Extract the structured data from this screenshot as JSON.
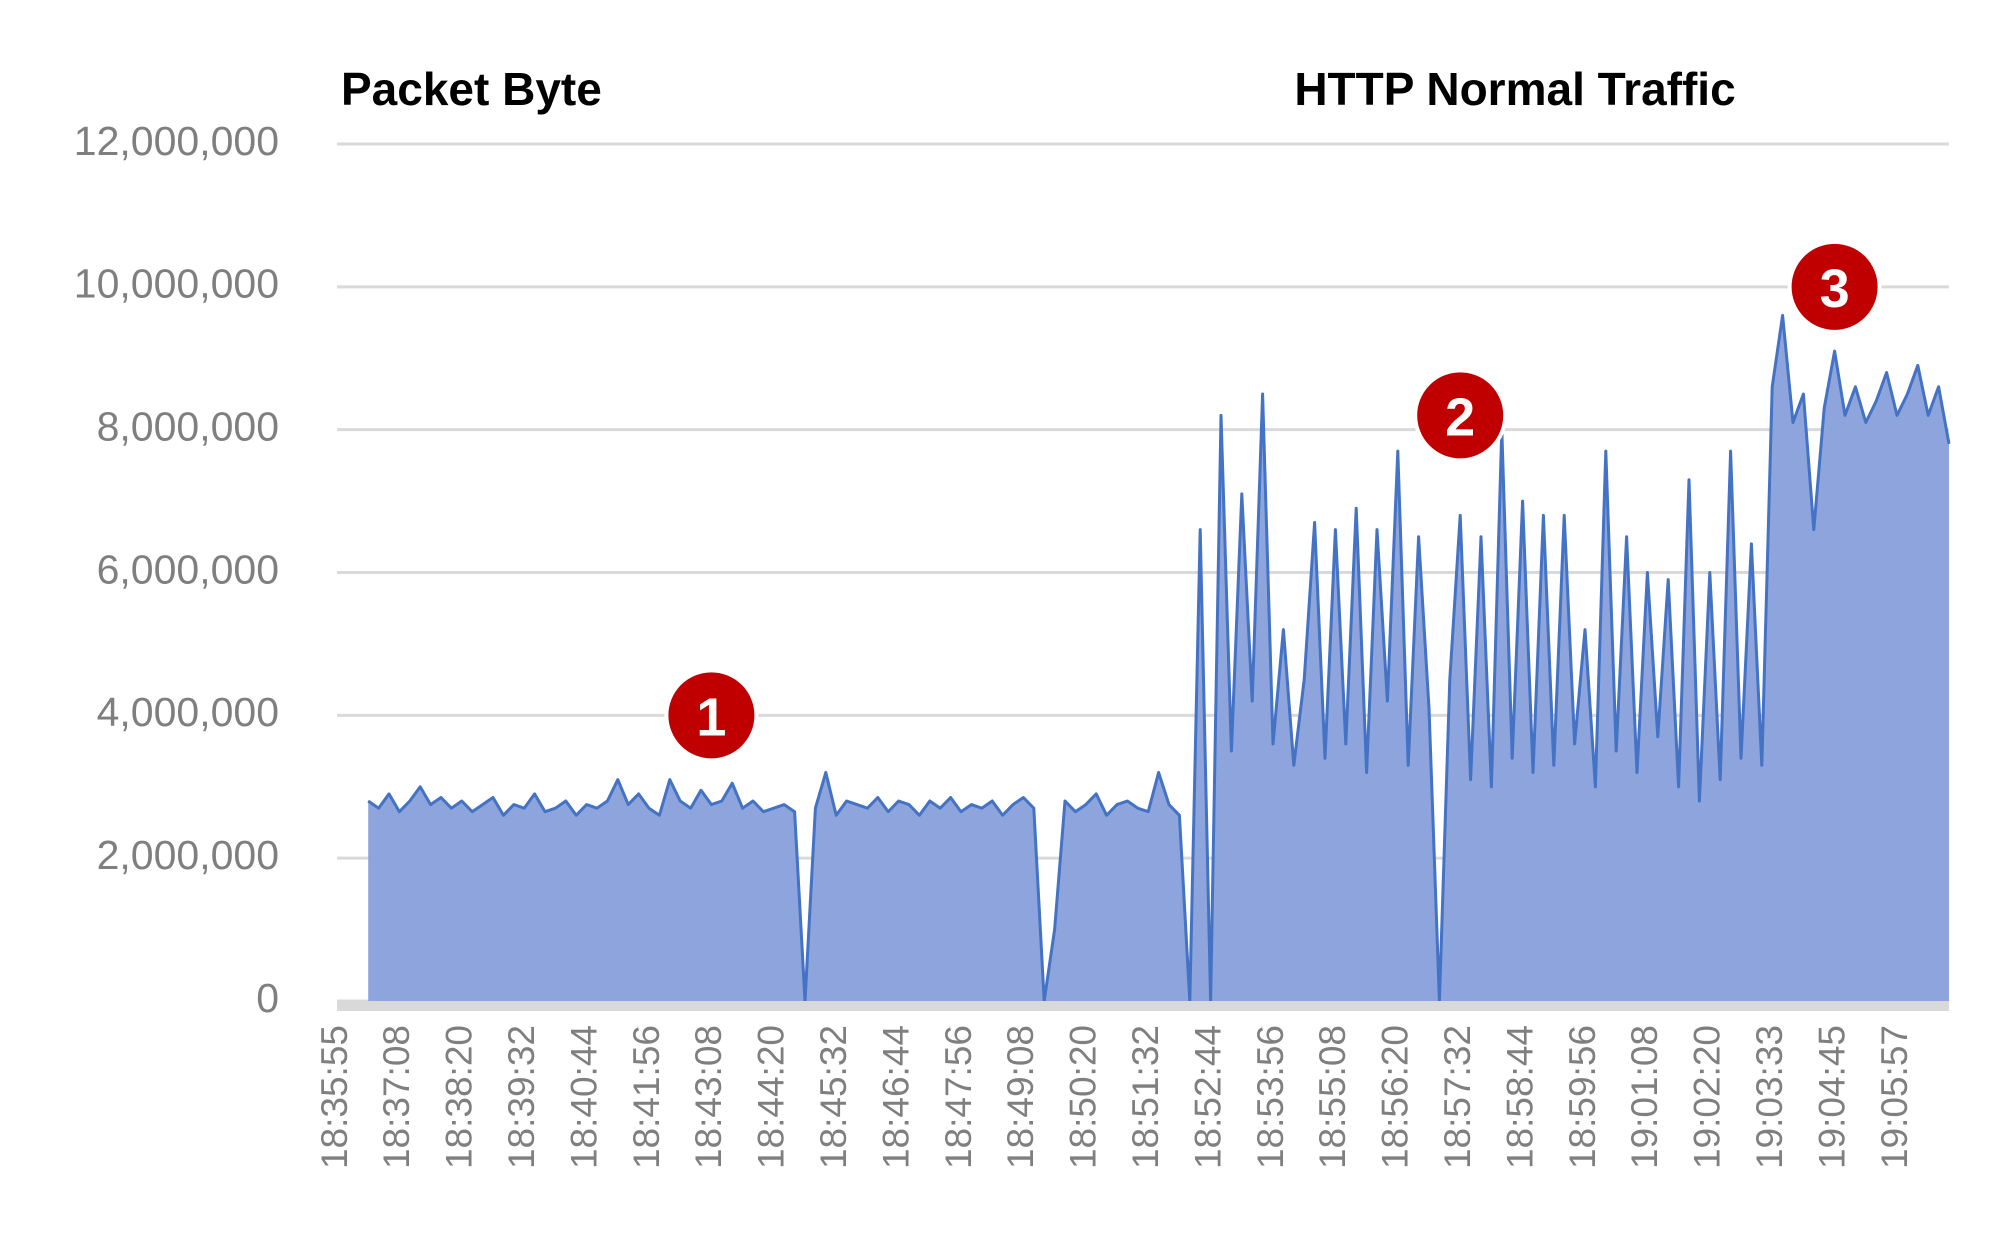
{
  "chart_data": {
    "type": "area",
    "title": "HTTP Normal Traffic",
    "ylabel": "Packet Byte",
    "color": "#4472c4",
    "fill": "#8da5dc",
    "grid": true,
    "ylim": [
      0,
      12000000
    ],
    "yticks": [
      0,
      {
        "value": 2000000,
        "label": "2,000,000"
      },
      {
        "value": 4000000,
        "label": "4,000,000"
      },
      {
        "value": 6000000,
        "label": "6,000,000"
      },
      {
        "value": 8000000,
        "label": "8,000,000"
      },
      {
        "value": 10000000,
        "label": "10,000,000"
      },
      {
        "value": 12000000,
        "label": "12,000,000"
      }
    ],
    "categories": [
      "18:35:55",
      null,
      null,
      null,
      null,
      null,
      "18:37:08",
      null,
      null,
      null,
      null,
      null,
      "18:38:20",
      null,
      null,
      null,
      null,
      null,
      "18:39:32",
      null,
      null,
      null,
      null,
      null,
      "18:40:44",
      null,
      null,
      null,
      null,
      null,
      "18:41:56",
      null,
      null,
      null,
      null,
      null,
      "18:43:08",
      null,
      null,
      null,
      null,
      null,
      "18:44:20",
      null,
      null,
      null,
      null,
      null,
      "18:45:32",
      null,
      null,
      null,
      null,
      null,
      "18:46:44",
      null,
      null,
      null,
      null,
      null,
      "18:47:56",
      null,
      null,
      null,
      null,
      null,
      "18:49:08",
      null,
      null,
      null,
      null,
      null,
      "18:50:20",
      null,
      null,
      null,
      null,
      null,
      "18:51:32",
      null,
      null,
      null,
      null,
      null,
      "18:52:44",
      null,
      null,
      null,
      null,
      null,
      "18:53:56",
      null,
      null,
      null,
      null,
      null,
      "18:55:08",
      null,
      null,
      null,
      null,
      null,
      "18:56:20",
      null,
      null,
      null,
      null,
      null,
      "18:57:32",
      null,
      null,
      null,
      null,
      null,
      "18:58:44",
      null,
      null,
      null,
      null,
      null,
      "18:59:56",
      null,
      null,
      null,
      null,
      null,
      "19:01:08",
      null,
      null,
      null,
      null,
      null,
      "19:02:20",
      null,
      null,
      null,
      null,
      null,
      "19:03:33",
      null,
      null,
      null,
      null,
      null,
      "19:04:45",
      null,
      null,
      null,
      null,
      null,
      "19:05:57",
      null,
      null,
      null,
      null,
      null
    ],
    "values": [
      null,
      null,
      null,
      2800000,
      2700000,
      2900000,
      2650000,
      2800000,
      3000000,
      2750000,
      2850000,
      2700000,
      2800000,
      2650000,
      2750000,
      2850000,
      2600000,
      2750000,
      2700000,
      2900000,
      2650000,
      2700000,
      2800000,
      2600000,
      2750000,
      2700000,
      2800000,
      3100000,
      2750000,
      2900000,
      2700000,
      2600000,
      3100000,
      2800000,
      2700000,
      2950000,
      2750000,
      2800000,
      3050000,
      2700000,
      2800000,
      2650000,
      2700000,
      2750000,
      2650000,
      0,
      2700000,
      3200000,
      2600000,
      2800000,
      2750000,
      2700000,
      2850000,
      2650000,
      2800000,
      2750000,
      2600000,
      2800000,
      2700000,
      2850000,
      2650000,
      2750000,
      2700000,
      2800000,
      2600000,
      2750000,
      2850000,
      2700000,
      0,
      1000000,
      2800000,
      2650000,
      2750000,
      2900000,
      2600000,
      2750000,
      2800000,
      2700000,
      2650000,
      3200000,
      2750000,
      2600000,
      0,
      6600000,
      0,
      8200000,
      3500000,
      7100000,
      4200000,
      8500000,
      3600000,
      5200000,
      3300000,
      4500000,
      6700000,
      3400000,
      6600000,
      3600000,
      6900000,
      3200000,
      6600000,
      4200000,
      7700000,
      3300000,
      6500000,
      4100000,
      0,
      4500000,
      6800000,
      3100000,
      6500000,
      3000000,
      8000000,
      3400000,
      7000000,
      3200000,
      6800000,
      3300000,
      6800000,
      3600000,
      5200000,
      3000000,
      7700000,
      3500000,
      6500000,
      3200000,
      6000000,
      3700000,
      5900000,
      3000000,
      7300000,
      2800000,
      6000000,
      3100000,
      7700000,
      3400000,
      6400000,
      3300000,
      8600000,
      9600000,
      8100000,
      8500000,
      6600000,
      8300000,
      9100000,
      8200000,
      8600000,
      8100000,
      8400000,
      8800000,
      8200000,
      8500000,
      8900000,
      8200000,
      8600000,
      7800000
    ],
    "annotations": [
      {
        "text": "1",
        "x": "18:43:08",
        "y": 4000000
      },
      {
        "text": "2",
        "x": "18:57:32",
        "y": 8200000
      },
      {
        "text": "3",
        "x": "19:04:45",
        "y": 10000000
      }
    ]
  }
}
